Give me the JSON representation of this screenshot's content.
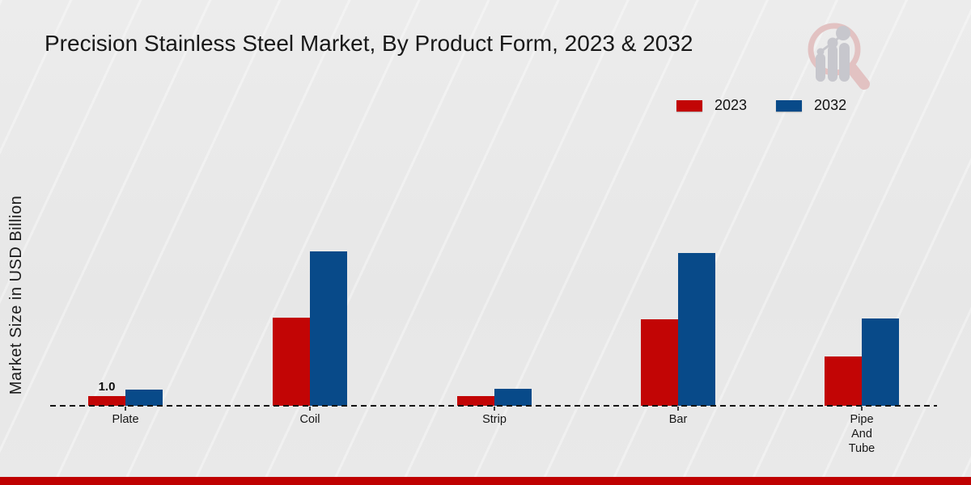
{
  "page": {
    "background_color": "#e9e9e9",
    "footer_color": "#bf0101"
  },
  "logo": {
    "icon": "magnifier-bar-chart-logo",
    "ring_color": "#e2c2c2",
    "glyph_color": "#c7c7cd"
  },
  "chart_data": {
    "type": "bar",
    "title": "Precision Stainless Steel Market, By Product Form, 2023 & 2032",
    "xlabel": "",
    "ylabel": "Market Size in USD Billion",
    "categories": [
      "Plate",
      "Coil",
      "Strip",
      "Bar",
      "Pipe And Tube"
    ],
    "category_label_lines": [
      [
        "Plate"
      ],
      [
        "Coil"
      ],
      [
        "Strip"
      ],
      [
        "Bar"
      ],
      [
        "Pipe",
        "And",
        "Tube"
      ]
    ],
    "series": [
      {
        "name": "2023",
        "color": "#c20505",
        "values": [
          1.0,
          9.5,
          1.05,
          9.3,
          5.3
        ]
      },
      {
        "name": "2032",
        "color": "#084a89",
        "values": [
          1.75,
          16.6,
          1.85,
          16.4,
          9.4
        ]
      }
    ],
    "data_labels": [
      {
        "category_index": 0,
        "series_index": 0,
        "text": "1.0"
      }
    ],
    "ylim": [
      0,
      18
    ],
    "grid": false,
    "axis_ticks_visible": true,
    "baseline_style": "dashed",
    "legend_position": "top-right",
    "units": "USD Billion"
  }
}
